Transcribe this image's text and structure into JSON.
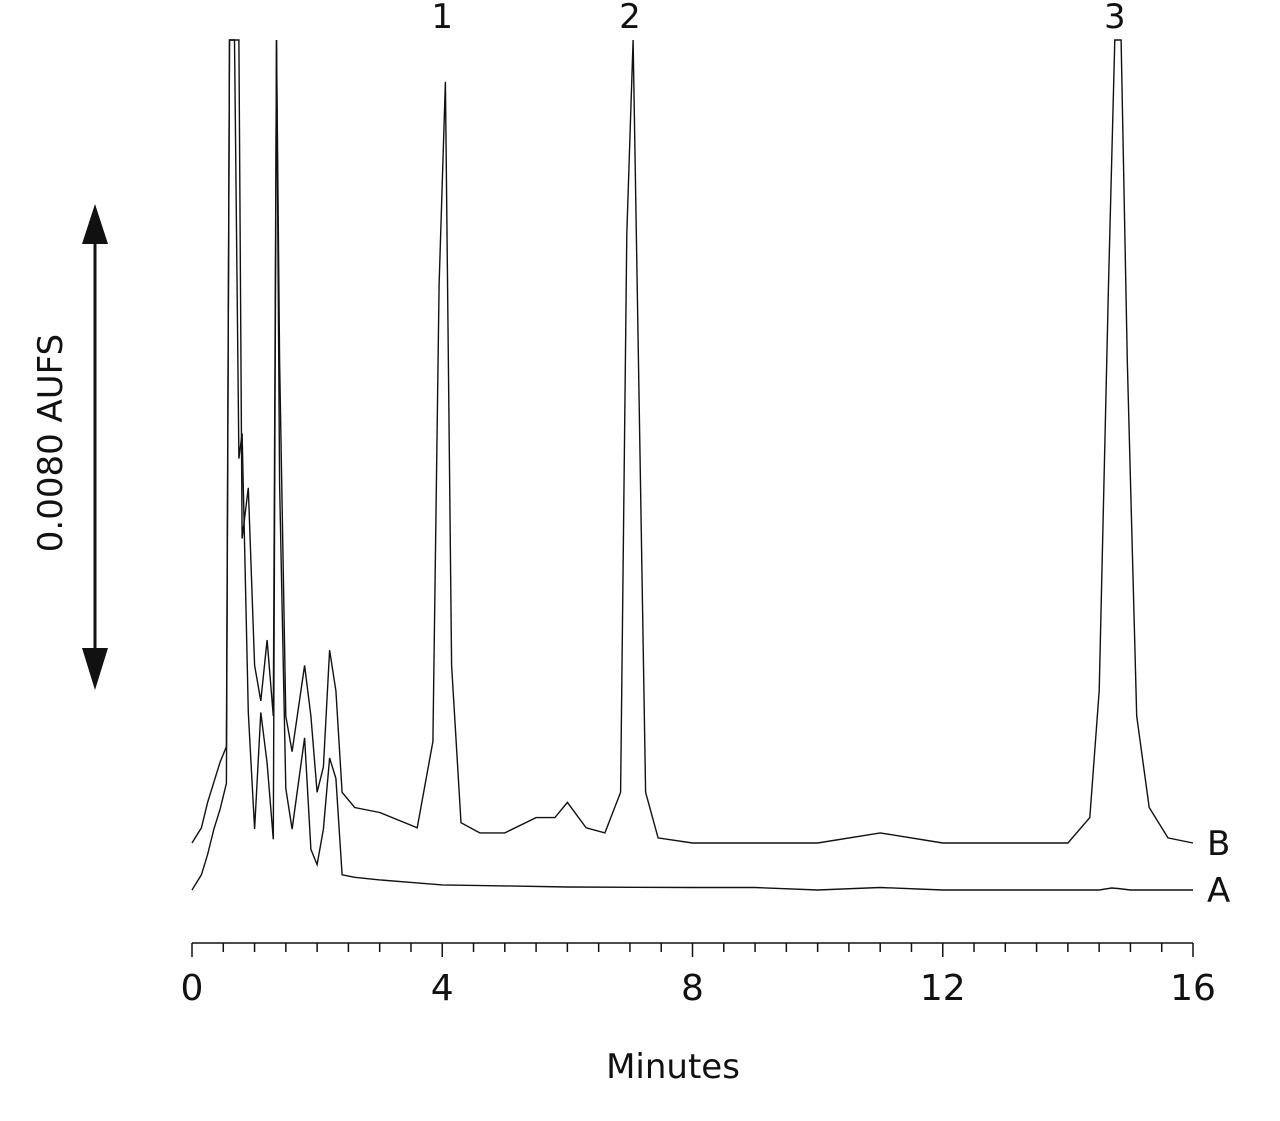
{
  "chart_data": {
    "type": "line",
    "title": "",
    "xlabel": "Minutes",
    "ylabel": "",
    "xlim": [
      0,
      16
    ],
    "x_ticks": [
      "0",
      "4",
      "8",
      "12",
      "16"
    ],
    "minor_tick_step": 0.5,
    "grid": false,
    "scale_bar": {
      "label": "0.0080 AUFS",
      "value": 0.008
    },
    "series": [
      {
        "name": "A",
        "x": [
          0,
          0.15,
          0.25,
          0.35,
          0.45,
          0.55,
          0.6,
          0.68,
          0.75,
          0.8,
          0.9,
          1.0,
          1.1,
          1.2,
          1.3,
          1.35,
          1.4,
          1.5,
          1.6,
          1.8,
          1.9,
          2.0,
          2.1,
          2.2,
          2.3,
          2.4,
          2.6,
          3.0,
          3.5,
          4.0,
          5.0,
          6.0,
          8.0,
          9.0,
          10.0,
          11.0,
          12.0,
          13.0,
          14.0,
          14.5,
          14.7,
          14.8,
          15.0,
          15.5,
          16.0
        ],
        "y": [
          0,
          0.0003,
          0.0007,
          0.0012,
          0.0016,
          0.0021,
          0.0198,
          0.0222,
          0.0085,
          0.009,
          0.0035,
          0.0012,
          0.0035,
          0.0025,
          0.001,
          0.031,
          0.008,
          0.002,
          0.0012,
          0.003,
          0.0008,
          0.0005,
          0.0012,
          0.0026,
          0.0022,
          0.0003,
          0.00025,
          0.0002,
          0.00015,
          0.0001,
          8e-05,
          6e-05,
          5e-05,
          5e-05,
          0.0,
          5e-05,
          0.0,
          0.0,
          0.0,
          0.0,
          4e-05,
          3e-05,
          0.0,
          0.0,
          0.0
        ]
      },
      {
        "name": "B",
        "x": [
          0,
          0.15,
          0.25,
          0.35,
          0.45,
          0.55,
          0.6,
          0.68,
          0.75,
          0.8,
          0.9,
          1.0,
          1.1,
          1.2,
          1.3,
          1.35,
          1.4,
          1.5,
          1.6,
          1.8,
          1.9,
          2.0,
          2.1,
          2.2,
          2.3,
          2.4,
          2.6,
          3.0,
          3.6,
          3.85,
          3.95,
          4.05,
          4.15,
          4.3,
          4.6,
          5.0,
          5.5,
          5.8,
          6.0,
          6.3,
          6.6,
          6.85,
          6.95,
          7.05,
          7.15,
          7.25,
          7.45,
          8.0,
          10.0,
          11.0,
          12.0,
          14.0,
          14.35,
          14.5,
          14.65,
          14.75,
          14.85,
          14.95,
          15.1,
          15.3,
          15.6,
          16.0
        ],
        "y": [
          0,
          0.0003,
          0.0008,
          0.0012,
          0.0016,
          0.0019,
          0.016,
          0.0225,
          0.02,
          0.006,
          0.007,
          0.0035,
          0.0028,
          0.004,
          0.0025,
          0.032,
          0.0095,
          0.0025,
          0.0018,
          0.0035,
          0.0025,
          0.001,
          0.0015,
          0.0038,
          0.003,
          0.001,
          0.0007,
          0.0006,
          0.0003,
          0.002,
          0.011,
          0.015,
          0.0035,
          0.0004,
          0.0002,
          0.0002,
          0.0005,
          0.0005,
          0.0008,
          0.0003,
          0.0002,
          0.001,
          0.012,
          0.018,
          0.0085,
          0.001,
          0.0001,
          0.0,
          0.0,
          0.0002,
          0.0,
          0.0,
          0.0005,
          0.003,
          0.011,
          0.0185,
          0.0165,
          0.0095,
          0.0025,
          0.0007,
          0.0001,
          0.0
        ]
      }
    ],
    "peaks": [
      {
        "label": "1",
        "x": 4.0,
        "series": "B",
        "y": 0.0175
      },
      {
        "label": "2",
        "x": 7.0,
        "series": "B",
        "y": 0.0195
      },
      {
        "label": "3",
        "x": 14.75,
        "series": "B",
        "y": 0.0205
      }
    ]
  }
}
